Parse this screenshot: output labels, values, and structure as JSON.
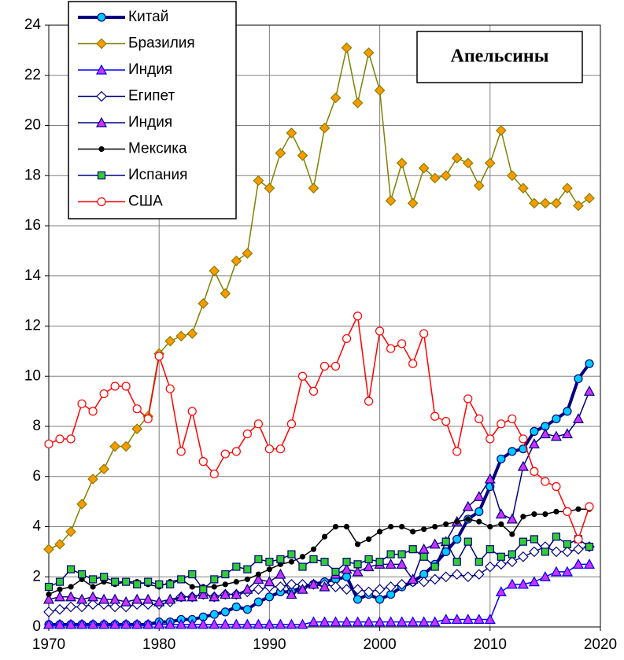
{
  "chart_data": {
    "type": "line",
    "title": "Апельсины",
    "x": [
      1970,
      1971,
      1972,
      1973,
      1974,
      1975,
      1976,
      1977,
      1978,
      1979,
      1980,
      1981,
      1982,
      1983,
      1984,
      1985,
      1986,
      1987,
      1988,
      1989,
      1990,
      1991,
      1992,
      1993,
      1994,
      1995,
      1996,
      1997,
      1998,
      1999,
      2000,
      2001,
      2002,
      2003,
      2004,
      2005,
      2006,
      2007,
      2008,
      2009,
      2010,
      2011,
      2012,
      2013,
      2014,
      2015,
      2016,
      2017,
      2018,
      2019
    ],
    "xlim": [
      1970,
      2020
    ],
    "xticks": [
      1970,
      1980,
      1990,
      2000,
      2010,
      2020
    ],
    "ylim": [
      0,
      24
    ],
    "yticks": [
      0,
      2,
      4,
      6,
      8,
      10,
      12,
      14,
      16,
      18,
      20,
      22,
      24
    ],
    "grid": true,
    "legend": "upper left",
    "series": [
      {
        "name": "Китай",
        "color": "#000080",
        "marker": "circle",
        "marker_color": "#00ccff",
        "line_width": 4,
        "values": [
          0.1,
          0.1,
          0.1,
          0.1,
          0.1,
          0.1,
          0.1,
          0.1,
          0.1,
          0.1,
          0.2,
          0.2,
          0.3,
          0.3,
          0.4,
          0.5,
          0.6,
          0.8,
          0.7,
          1.0,
          1.2,
          1.4,
          1.4,
          1.6,
          1.7,
          1.8,
          1.9,
          2.0,
          1.1,
          1.3,
          1.1,
          1.3,
          1.6,
          1.8,
          2.1,
          2.5,
          3.0,
          3.5,
          4.3,
          4.6,
          5.6,
          6.7,
          7.0,
          7.1,
          7.8,
          8.0,
          8.3,
          8.6,
          9.9,
          10.5
        ]
      },
      {
        "name": "Бразилия",
        "color": "#808000",
        "marker": "diamond",
        "marker_color": "#ff9900",
        "line_width": 1.5,
        "values": [
          3.1,
          3.3,
          3.8,
          4.9,
          5.9,
          6.3,
          7.2,
          7.2,
          7.9,
          8.4,
          10.9,
          11.4,
          11.6,
          11.7,
          12.9,
          14.2,
          13.3,
          14.6,
          14.9,
          17.8,
          17.5,
          18.9,
          19.7,
          18.8,
          17.5,
          19.9,
          21.1,
          23.1,
          20.9,
          22.9,
          21.4,
          17.0,
          18.5,
          16.9,
          18.3,
          17.9,
          18.0,
          18.7,
          18.5,
          17.6,
          18.5,
          19.8,
          18.0,
          17.5,
          16.9,
          16.9,
          16.9,
          17.5,
          16.8,
          17.1
        ]
      },
      {
        "name": "Индия",
        "color": "#0000ff",
        "marker": "triangle",
        "marker_color": "#cc33ff",
        "line_width": 1.5,
        "values": [
          0.1,
          0.1,
          0.1,
          0.1,
          0.1,
          0.1,
          0.1,
          0.1,
          0.1,
          0.1,
          0.1,
          0.1,
          0.1,
          0.1,
          0.1,
          0.1,
          0.1,
          0.1,
          0.1,
          0.1,
          0.1,
          0.1,
          0.1,
          0.1,
          0.2,
          0.2,
          0.2,
          0.2,
          0.2,
          0.2,
          0.2,
          0.2,
          0.2,
          0.2,
          0.2,
          0.2,
          0.3,
          0.3,
          0.3,
          0.3,
          0.3,
          1.4,
          1.7,
          1.7,
          1.8,
          2.0,
          2.2,
          2.2,
          2.5,
          2.5
        ]
      },
      {
        "name": "Египет",
        "color": "#000080",
        "marker": "diamond",
        "marker_color": "#ffffff",
        "line_width": 1.5,
        "values": [
          0.6,
          0.7,
          0.8,
          0.8,
          0.9,
          0.9,
          0.8,
          0.8,
          0.9,
          0.9,
          0.9,
          1.0,
          1.2,
          1.2,
          1.3,
          1.2,
          1.3,
          1.3,
          1.4,
          1.5,
          1.6,
          1.6,
          1.7,
          1.7,
          1.7,
          1.7,
          1.6,
          1.5,
          1.5,
          1.4,
          1.5,
          1.6,
          1.7,
          1.8,
          1.8,
          1.9,
          2.0,
          2.1,
          2.0,
          2.1,
          2.4,
          2.5,
          2.6,
          2.8,
          3.0,
          3.2,
          3.0,
          3.0,
          3.1,
          3.2
        ]
      },
      {
        "name": "Индия",
        "color": "#000080",
        "marker": "triangle",
        "marker_color": "#cc33ff",
        "line_width": 1.5,
        "values": [
          1.1,
          1.2,
          1.2,
          1.1,
          1.2,
          1.1,
          1.1,
          1.0,
          1.1,
          1.1,
          1.0,
          1.1,
          1.2,
          1.2,
          1.3,
          1.2,
          1.3,
          1.3,
          1.5,
          1.9,
          1.8,
          2.1,
          1.3,
          1.5,
          1.7,
          1.6,
          2.1,
          2.3,
          2.2,
          2.4,
          2.5,
          2.5,
          2.5,
          1.9,
          3.1,
          3.3,
          3.4,
          4.2,
          4.8,
          5.2,
          5.9,
          4.5,
          4.3,
          6.4,
          7.3,
          7.7,
          7.6,
          7.7,
          8.3,
          9.4
        ]
      },
      {
        "name": "Мексика",
        "color": "#000000",
        "marker": "dot",
        "marker_color": "#000000",
        "line_width": 1.5,
        "values": [
          1.3,
          1.5,
          1.6,
          1.9,
          1.6,
          1.8,
          1.7,
          1.8,
          1.8,
          1.7,
          1.6,
          1.8,
          1.9,
          1.6,
          1.6,
          1.6,
          1.7,
          1.8,
          1.9,
          2.1,
          2.3,
          2.5,
          2.6,
          2.8,
          3.1,
          3.6,
          4.0,
          4.0,
          3.3,
          3.5,
          3.8,
          4.0,
          4.0,
          3.8,
          3.9,
          4.0,
          4.1,
          4.2,
          4.3,
          4.2,
          4.0,
          4.1,
          3.7,
          4.4,
          4.5,
          4.5,
          4.6,
          4.6,
          4.7,
          4.7
        ]
      },
      {
        "name": "Испания",
        "color": "#000080",
        "marker": "square",
        "marker_color": "#33cc33",
        "line_width": 1.5,
        "values": [
          1.6,
          1.8,
          2.3,
          2.1,
          1.9,
          2.0,
          1.8,
          1.8,
          1.7,
          1.8,
          1.7,
          1.7,
          1.9,
          2.1,
          1.5,
          1.9,
          2.1,
          2.4,
          2.3,
          2.7,
          2.6,
          2.7,
          2.9,
          2.4,
          2.7,
          2.6,
          2.2,
          2.6,
          2.5,
          2.7,
          2.6,
          2.9,
          2.9,
          3.1,
          2.8,
          2.4,
          3.4,
          2.6,
          3.4,
          2.6,
          3.1,
          2.8,
          2.9,
          3.4,
          3.5,
          3.0,
          3.6,
          3.3,
          3.5,
          3.2
        ]
      },
      {
        "name": "США",
        "color": "#ff0000",
        "marker": "circle",
        "marker_color": "#ffffff",
        "line_width": 1.5,
        "values": [
          7.3,
          7.5,
          7.5,
          8.9,
          8.6,
          9.3,
          9.6,
          9.6,
          8.7,
          8.3,
          10.8,
          9.5,
          7.0,
          8.6,
          6.6,
          6.1,
          6.9,
          7.0,
          7.7,
          8.1,
          7.1,
          7.1,
          8.1,
          10.0,
          9.4,
          10.4,
          10.4,
          11.5,
          12.4,
          9.0,
          11.8,
          11.1,
          11.3,
          10.5,
          11.7,
          8.4,
          8.2,
          7.0,
          9.1,
          8.3,
          7.5,
          8.1,
          8.3,
          7.5,
          6.2,
          5.8,
          5.6,
          4.6,
          3.5,
          4.8
        ]
      }
    ]
  }
}
